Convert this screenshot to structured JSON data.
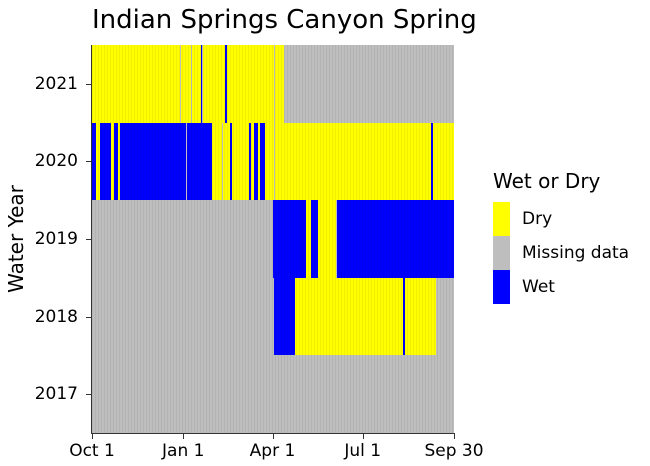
{
  "chart_data": {
    "type": "heatmap",
    "title": "Indian Springs Canyon Spring",
    "xlabel": "",
    "ylabel": "Water Year",
    "x_range_days": [
      0,
      365
    ],
    "x_ticks": [
      {
        "label": "Oct 1",
        "day": 0
      },
      {
        "label": "Jan 1",
        "day": 92
      },
      {
        "label": "Apr 1",
        "day": 182
      },
      {
        "label": "Jul 1",
        "day": 273
      },
      {
        "label": "Sep 30",
        "day": 365
      }
    ],
    "y_ticks": [
      "2021",
      "2020",
      "2019",
      "2018",
      "2017"
    ],
    "legend": {
      "title": "Wet or Dry",
      "position": "right",
      "items": [
        {
          "label": "Dry",
          "color": "#ffff00"
        },
        {
          "label": "Missing data",
          "color": "#bebebe"
        },
        {
          "label": "Wet",
          "color": "#0000ff"
        }
      ]
    },
    "grid": false,
    "rows": [
      {
        "year": "2021",
        "segments": [
          {
            "state": "Dry",
            "start": 0,
            "end": 89
          },
          {
            "state": "Missing data",
            "start": 89,
            "end": 90
          },
          {
            "state": "Dry",
            "start": 90,
            "end": 100
          },
          {
            "state": "Missing data",
            "start": 100,
            "end": 101
          },
          {
            "state": "Dry",
            "start": 101,
            "end": 110
          },
          {
            "state": "Wet",
            "start": 110,
            "end": 111
          },
          {
            "state": "Missing data",
            "start": 111,
            "end": 112
          },
          {
            "state": "Dry",
            "start": 112,
            "end": 134
          },
          {
            "state": "Wet",
            "start": 134,
            "end": 136
          },
          {
            "state": "Dry",
            "start": 136,
            "end": 184
          },
          {
            "state": "Missing data",
            "start": 184,
            "end": 185
          },
          {
            "state": "Dry",
            "start": 185,
            "end": 194
          },
          {
            "state": "Missing data",
            "start": 194,
            "end": 365
          }
        ]
      },
      {
        "year": "2020",
        "segments": [
          {
            "state": "Wet",
            "start": 0,
            "end": 4
          },
          {
            "state": "Dry",
            "start": 4,
            "end": 8
          },
          {
            "state": "Wet",
            "start": 8,
            "end": 19
          },
          {
            "state": "Dry",
            "start": 19,
            "end": 22
          },
          {
            "state": "Wet",
            "start": 22,
            "end": 26
          },
          {
            "state": "Dry",
            "start": 26,
            "end": 28
          },
          {
            "state": "Wet",
            "start": 28,
            "end": 95
          },
          {
            "state": "Missing data",
            "start": 95,
            "end": 96
          },
          {
            "state": "Wet",
            "start": 96,
            "end": 121
          },
          {
            "state": "Dry",
            "start": 121,
            "end": 131
          },
          {
            "state": "Missing data",
            "start": 131,
            "end": 132
          },
          {
            "state": "Dry",
            "start": 132,
            "end": 139
          },
          {
            "state": "Wet",
            "start": 139,
            "end": 141
          },
          {
            "state": "Dry",
            "start": 141,
            "end": 158
          },
          {
            "state": "Wet",
            "start": 158,
            "end": 160
          },
          {
            "state": "Dry",
            "start": 160,
            "end": 163
          },
          {
            "state": "Wet",
            "start": 163,
            "end": 167
          },
          {
            "state": "Dry",
            "start": 167,
            "end": 169
          },
          {
            "state": "Wet",
            "start": 169,
            "end": 174
          },
          {
            "state": "Dry",
            "start": 174,
            "end": 184
          },
          {
            "state": "Missing data",
            "start": 184,
            "end": 185
          },
          {
            "state": "Dry",
            "start": 185,
            "end": 342
          },
          {
            "state": "Wet",
            "start": 342,
            "end": 344
          },
          {
            "state": "Dry",
            "start": 344,
            "end": 365
          }
        ]
      },
      {
        "year": "2019",
        "segments": [
          {
            "state": "Missing data",
            "start": 0,
            "end": 183
          },
          {
            "state": "Wet",
            "start": 183,
            "end": 216
          },
          {
            "state": "Dry",
            "start": 216,
            "end": 221
          },
          {
            "state": "Wet",
            "start": 221,
            "end": 228
          },
          {
            "state": "Dry",
            "start": 228,
            "end": 246
          },
          {
            "state": "Missing data",
            "start": 246,
            "end": 247
          },
          {
            "state": "Wet",
            "start": 247,
            "end": 365
          }
        ]
      },
      {
        "year": "2018",
        "segments": [
          {
            "state": "Missing data",
            "start": 0,
            "end": 184
          },
          {
            "state": "Wet",
            "start": 184,
            "end": 205
          },
          {
            "state": "Dry",
            "start": 205,
            "end": 314
          },
          {
            "state": "Wet",
            "start": 314,
            "end": 316
          },
          {
            "state": "Dry",
            "start": 316,
            "end": 347
          },
          {
            "state": "Missing data",
            "start": 347,
            "end": 365
          }
        ]
      },
      {
        "year": "2017",
        "segments": [
          {
            "state": "Missing data",
            "start": 0,
            "end": 365
          }
        ]
      }
    ]
  }
}
